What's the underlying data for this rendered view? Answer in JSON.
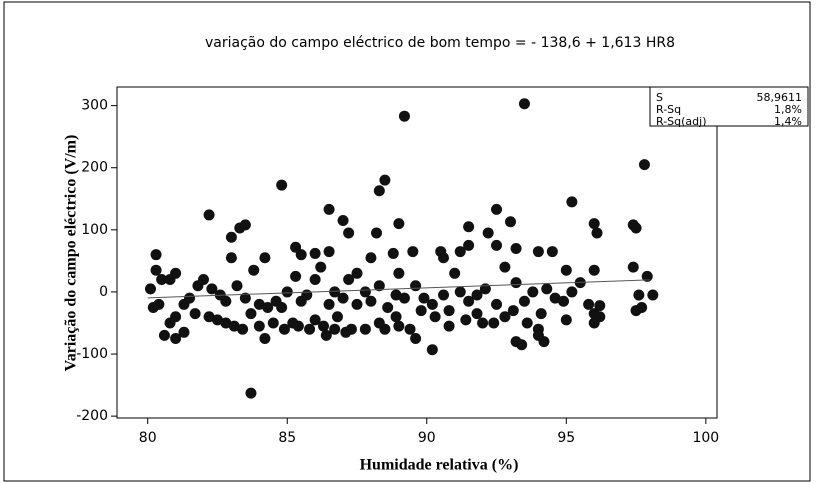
{
  "chart_data": {
    "type": "scatter",
    "title": "variação do campo eléctrico de bom tempo =  - 138,6 + 1,613 HR8",
    "x_label": "Humidade relativa (%)",
    "y_label": "Variação do campo eléctrico (V/m)",
    "stats": [
      [
        "S",
        "58,9611"
      ],
      [
        "R-Sq",
        "1,8%"
      ],
      [
        "R-Sq(adj)",
        "1,4%"
      ]
    ],
    "color": "#111111",
    "xlim": [
      78.9,
      100.4
    ],
    "ylim": [
      -203,
      330
    ],
    "xticks": [
      80,
      85,
      90,
      95,
      100
    ],
    "yticks": [
      -200,
      -100,
      0,
      100,
      200,
      300
    ],
    "fit": {
      "x": [
        80,
        98
      ],
      "y": [
        -9.6,
        19.5
      ]
    },
    "x": [
      84.8,
      89.2,
      93.5,
      97.8,
      83.7,
      90.2,
      95.2,
      82.2,
      86.5,
      88.5,
      88.3,
      92.5,
      93.0,
      97.4,
      97.5,
      91.5,
      96.0,
      96.1,
      85.5,
      86.0,
      86.5,
      87,
      89,
      89.5,
      90.5,
      90.6,
      91.2,
      91.5,
      92.2,
      92.5,
      93.2,
      94,
      94.5,
      80.3,
      83.3,
      83.5,
      83,
      84.2,
      85.3,
      87.2,
      88.2,
      88.8,
      87.5,
      88,
      89.0,
      92.8,
      93.2,
      95,
      96,
      97.4,
      97.9,
      98.1,
      97.6,
      97.7,
      97.5,
      96,
      96,
      96.2,
      95,
      94.2,
      94,
      94,
      93.2,
      93.4,
      92.4,
      92,
      91.8,
      90.8,
      90.8,
      90.3,
      89.8,
      89.4,
      89.6,
      89,
      88.5,
      88.3,
      87.8,
      87.3,
      87.1,
      86.7,
      86.4,
      86.3,
      86,
      85.8,
      85.4,
      85.2,
      84.8,
      84.5,
      84.2,
      84.0,
      83.7,
      83.4,
      83.1,
      82.8,
      82.5,
      82.2,
      81.7,
      81.3,
      81,
      81,
      80.8,
      80.6,
      80.2,
      80.4,
      80.1,
      80.3,
      80.5,
      80.8,
      81.0,
      81.3,
      81.5,
      81.8,
      82,
      82.3,
      82.6,
      82.8,
      83.0,
      83.2,
      83.5,
      83.8,
      84,
      84.3,
      84.6,
      85,
      85.3,
      85.5,
      85.7,
      86,
      86.2,
      86.5,
      86.7,
      87,
      87.2,
      87.5,
      87.8,
      88,
      88.3,
      88.6,
      88.9,
      89.2,
      89.6,
      89.9,
      90.2,
      90.6,
      91,
      91.2,
      91.5,
      91.8,
      92.1,
      92.5,
      92.8,
      93.1,
      93.5,
      93.8,
      94.1,
      94.3,
      94.6,
      94.9,
      95.2,
      95.5,
      95.8,
      96.2,
      84.9,
      86.8,
      88.9,
      91.4,
      93.6
    ],
    "values": [
      172,
      283,
      303,
      205,
      -163,
      -93,
      145,
      124,
      133,
      180,
      163,
      133,
      113,
      108,
      103,
      105,
      110,
      95,
      60,
      62,
      65,
      115,
      110,
      65,
      65,
      55,
      65,
      75,
      95,
      75,
      70,
      65,
      65,
      60,
      103,
      108,
      88,
      55,
      72,
      95,
      95,
      62,
      30,
      55,
      30,
      40,
      15,
      35,
      35,
      40,
      25,
      -5,
      -5,
      -25,
      -30,
      -50,
      -35,
      -22,
      -45,
      -80,
      -60,
      -70,
      -80,
      -85,
      -50,
      -50,
      -35,
      -55,
      -30,
      -40,
      -30,
      -60,
      -75,
      -55,
      -60,
      -50,
      -60,
      -60,
      -65,
      -60,
      -70,
      -55,
      -45,
      -60,
      -55,
      -50,
      -25,
      -50,
      -75,
      -55,
      -35,
      -60,
      -55,
      -50,
      -45,
      -40,
      -35,
      -65,
      -40,
      -75,
      -50,
      -70,
      -25,
      -20,
      5,
      35,
      20,
      20,
      30,
      -20,
      -10,
      10,
      20,
      5,
      -5,
      -15,
      55,
      10,
      -10,
      35,
      -20,
      -25,
      -15,
      0,
      25,
      -15,
      -5,
      20,
      40,
      -20,
      0,
      -10,
      20,
      -20,
      0,
      -15,
      10,
      -25,
      -5,
      -10,
      10,
      -10,
      -20,
      -5,
      30,
      0,
      -15,
      -5,
      5,
      -20,
      -40,
      -30,
      -15,
      0,
      -35,
      5,
      -10,
      -15,
      0,
      15,
      -20,
      -40,
      -60,
      -40,
      -40,
      -45,
      -50
    ]
  }
}
